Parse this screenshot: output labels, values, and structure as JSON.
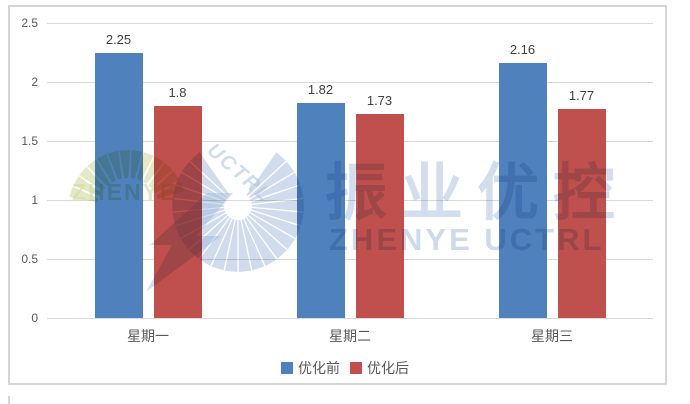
{
  "chart_data": {
    "type": "bar",
    "title": "",
    "categories": [
      "星期一",
      "星期二",
      "星期三"
    ],
    "series": [
      {
        "name": "优化前",
        "color": "#4f81bd",
        "values": [
          2.25,
          1.82,
          2.16
        ],
        "labels": [
          "2.25",
          "1.82",
          "2.16"
        ]
      },
      {
        "name": "优化后",
        "color": "#c0504d",
        "values": [
          1.8,
          1.73,
          1.77
        ],
        "labels": [
          "1.8",
          "1.73",
          "1.77"
        ]
      }
    ],
    "ylim": [
      0,
      2.5
    ],
    "ytick_values": [
      0,
      0.5,
      1,
      1.5,
      2,
      2.5
    ],
    "ytick_labels": [
      "0",
      "0.5",
      "1",
      "1.5",
      "2",
      "2.5"
    ],
    "grid": true,
    "legend_position": "bottom"
  },
  "watermark": {
    "cn": "振业优控",
    "en": "ZHENYE UCTRL",
    "logo_text": "ZHENYE",
    "logo_sub": "UCTRL",
    "color": "#a8c0df"
  },
  "colors": {
    "grid": "#d9d9d9",
    "axis_text": "#595959",
    "value_text": "#404040",
    "frame": "#d5d5d5"
  }
}
